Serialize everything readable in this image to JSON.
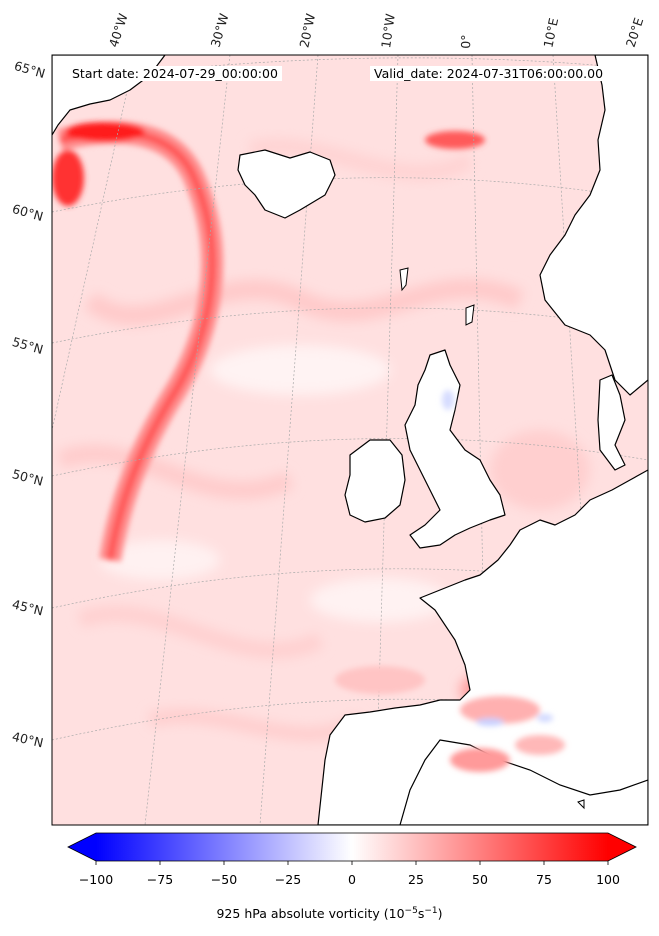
{
  "header": {
    "start_date": "Start date: 2024-07-29_00:00:00",
    "valid_date": "Valid_date: 2024-07-31T06:00:00.00"
  },
  "longitude_labels": [
    "40°W",
    "30°W",
    "20°W",
    "10°W",
    "0°",
    "10°E",
    "20°E"
  ],
  "latitude_labels": [
    "65°N",
    "60°N",
    "55°N",
    "50°N",
    "45°N",
    "40°N"
  ],
  "colorbar": {
    "label": "925 hPa absolute vorticity (10",
    "label_exp": "−5",
    "label_unit": "s",
    "label_exp2": "−1",
    "label_end": ")",
    "range": [
      -100,
      100
    ],
    "ticks": [
      "−100",
      "−75",
      "−50",
      "−25",
      "0",
      "25",
      "50",
      "75",
      "100"
    ],
    "colormap": "bwr",
    "min_color": "#0000ff",
    "mid_color": "#ffffff",
    "max_color": "#ff0000"
  },
  "map": {
    "projection": "conic",
    "field": "925 hPa absolute vorticity",
    "coastline_color": "#000000",
    "gridline_style": "dotted-gray",
    "high_vorticity_color": "#ff1a1a",
    "background_vorticity_color": "#ffe2e2"
  }
}
